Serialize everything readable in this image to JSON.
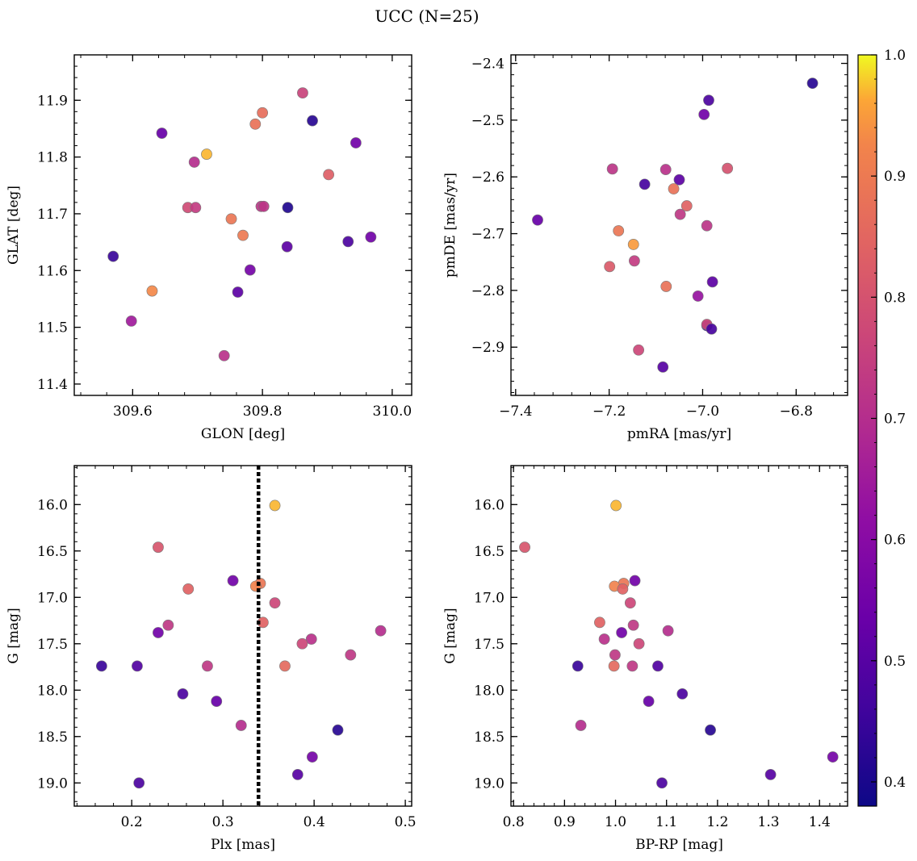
{
  "title": "UCC (N=25)",
  "colorbar": {
    "colormap": "plasma",
    "range": [
      0.38,
      1.0
    ],
    "ticks": [
      0.4,
      0.5,
      0.6,
      0.7,
      0.8,
      0.9,
      1.0
    ],
    "tick_labels": [
      "0.4",
      "0.5",
      "0.6",
      "0.7",
      "0.8",
      "0.9",
      "1.0"
    ]
  },
  "chart_data": [
    {
      "type": "scatter",
      "name": "glon-glat",
      "xlabel": "GLON [deg]",
      "ylabel": "GLAT [deg]",
      "xlim": [
        309.51,
        310.03
      ],
      "ylim": [
        11.38,
        11.98
      ],
      "xticks": [
        309.6,
        309.8,
        310.0
      ],
      "xtick_labels": [
        "309.6",
        "309.8",
        "310.0"
      ],
      "yticks": [
        11.4,
        11.5,
        11.6,
        11.7,
        11.8,
        11.9
      ],
      "ytick_labels": [
        "11.4",
        "11.5",
        "11.6",
        "11.7",
        "11.8",
        "11.9"
      ],
      "points": [
        {
          "x": 309.862,
          "y": 11.913,
          "c": 0.76
        },
        {
          "x": 309.8,
          "y": 11.878,
          "c": 0.87
        },
        {
          "x": 309.789,
          "y": 11.858,
          "c": 0.88
        },
        {
          "x": 309.877,
          "y": 11.864,
          "c": 0.42
        },
        {
          "x": 309.944,
          "y": 11.825,
          "c": 0.55
        },
        {
          "x": 309.645,
          "y": 11.842,
          "c": 0.53
        },
        {
          "x": 309.714,
          "y": 11.805,
          "c": 0.97
        },
        {
          "x": 309.695,
          "y": 11.791,
          "c": 0.7
        },
        {
          "x": 309.902,
          "y": 11.769,
          "c": 0.83
        },
        {
          "x": 309.685,
          "y": 11.711,
          "c": 0.78
        },
        {
          "x": 309.697,
          "y": 11.711,
          "c": 0.74
        },
        {
          "x": 309.798,
          "y": 11.713,
          "c": 0.72
        },
        {
          "x": 309.802,
          "y": 11.713,
          "c": 0.72
        },
        {
          "x": 309.839,
          "y": 11.711,
          "c": 0.41
        },
        {
          "x": 309.752,
          "y": 11.691,
          "c": 0.89
        },
        {
          "x": 309.77,
          "y": 11.662,
          "c": 0.9
        },
        {
          "x": 309.967,
          "y": 11.659,
          "c": 0.55
        },
        {
          "x": 309.932,
          "y": 11.651,
          "c": 0.48
        },
        {
          "x": 309.838,
          "y": 11.642,
          "c": 0.51
        },
        {
          "x": 309.57,
          "y": 11.625,
          "c": 0.45
        },
        {
          "x": 309.781,
          "y": 11.601,
          "c": 0.56
        },
        {
          "x": 309.762,
          "y": 11.562,
          "c": 0.51
        },
        {
          "x": 309.63,
          "y": 11.564,
          "c": 0.93
        },
        {
          "x": 309.598,
          "y": 11.511,
          "c": 0.65
        },
        {
          "x": 309.741,
          "y": 11.45,
          "c": 0.71
        }
      ]
    },
    {
      "type": "scatter",
      "name": "pmra-pmde",
      "xlabel": "pmRA [mas/yr]",
      "ylabel": "pmDE [mas/yr]",
      "xlim": [
        -7.41,
        -6.69
      ],
      "ylim": [
        -2.985,
        -2.385
      ],
      "xticks": [
        -7.4,
        -7.2,
        -7.0,
        -6.8
      ],
      "xtick_labels": [
        "−7.4",
        "−7.2",
        "−7.0",
        "−6.8"
      ],
      "yticks": [
        -2.9,
        -2.8,
        -2.7,
        -2.6,
        -2.5,
        -2.4
      ],
      "ytick_labels": [
        "−2.9",
        "−2.8",
        "−2.7",
        "−2.6",
        "−2.5",
        "−2.4"
      ],
      "points": [
        {
          "x": -6.765,
          "y": -2.435,
          "c": 0.42
        },
        {
          "x": -6.987,
          "y": -2.465,
          "c": 0.48
        },
        {
          "x": -6.997,
          "y": -2.49,
          "c": 0.55
        },
        {
          "x": -6.947,
          "y": -2.585,
          "c": 0.8
        },
        {
          "x": -7.193,
          "y": -2.586,
          "c": 0.72
        },
        {
          "x": -7.079,
          "y": -2.587,
          "c": 0.71
        },
        {
          "x": -7.05,
          "y": -2.605,
          "c": 0.51
        },
        {
          "x": -7.124,
          "y": -2.613,
          "c": 0.47
        },
        {
          "x": -7.062,
          "y": -2.621,
          "c": 0.88
        },
        {
          "x": -7.034,
          "y": -2.651,
          "c": 0.84
        },
        {
          "x": -7.048,
          "y": -2.666,
          "c": 0.73
        },
        {
          "x": -7.353,
          "y": -2.676,
          "c": 0.53
        },
        {
          "x": -6.991,
          "y": -2.686,
          "c": 0.72
        },
        {
          "x": -7.18,
          "y": -2.695,
          "c": 0.89
        },
        {
          "x": -7.148,
          "y": -2.719,
          "c": 0.95
        },
        {
          "x": -7.146,
          "y": -2.748,
          "c": 0.74
        },
        {
          "x": -7.199,
          "y": -2.758,
          "c": 0.82
        },
        {
          "x": -6.979,
          "y": -2.785,
          "c": 0.51
        },
        {
          "x": -7.078,
          "y": -2.793,
          "c": 0.88
        },
        {
          "x": -7.01,
          "y": -2.81,
          "c": 0.63
        },
        {
          "x": -6.991,
          "y": -2.862,
          "c": 0.45
        },
        {
          "x": -6.991,
          "y": -2.86,
          "c": 0.77
        },
        {
          "x": -6.981,
          "y": -2.868,
          "c": 0.47
        },
        {
          "x": -7.137,
          "y": -2.905,
          "c": 0.77
        },
        {
          "x": -7.085,
          "y": -2.935,
          "c": 0.5
        }
      ]
    },
    {
      "type": "scatter",
      "name": "plx-g",
      "xlabel": "Plx [mas]",
      "ylabel": "G [mag]",
      "xlim": [
        0.137,
        0.507
      ],
      "ylim": [
        19.25,
        15.58
      ],
      "y_inverted": true,
      "xticks": [
        0.2,
        0.3,
        0.4,
        0.5
      ],
      "xtick_labels": [
        "0.2",
        "0.3",
        "0.4",
        "0.5"
      ],
      "yticks": [
        16.0,
        16.5,
        17.0,
        17.5,
        18.0,
        18.5,
        19.0
      ],
      "ytick_labels": [
        "16.0",
        "16.5",
        "17.0",
        "17.5",
        "18.0",
        "18.5",
        "19.0"
      ],
      "vline": {
        "x": 0.339,
        "style": "dotted",
        "color": "#000000"
      },
      "points": [
        {
          "x": 0.357,
          "y": 16.01,
          "c": 0.97
        },
        {
          "x": 0.229,
          "y": 16.46,
          "c": 0.81
        },
        {
          "x": 0.311,
          "y": 16.82,
          "c": 0.55
        },
        {
          "x": 0.341,
          "y": 16.85,
          "c": 0.89
        },
        {
          "x": 0.336,
          "y": 16.88,
          "c": 0.92
        },
        {
          "x": 0.262,
          "y": 16.91,
          "c": 0.84
        },
        {
          "x": 0.357,
          "y": 17.06,
          "c": 0.77
        },
        {
          "x": 0.344,
          "y": 17.27,
          "c": 0.84
        },
        {
          "x": 0.24,
          "y": 17.3,
          "c": 0.73
        },
        {
          "x": 0.473,
          "y": 17.36,
          "c": 0.7
        },
        {
          "x": 0.229,
          "y": 17.38,
          "c": 0.55
        },
        {
          "x": 0.397,
          "y": 17.45,
          "c": 0.71
        },
        {
          "x": 0.387,
          "y": 17.5,
          "c": 0.77
        },
        {
          "x": 0.44,
          "y": 17.62,
          "c": 0.73
        },
        {
          "x": 0.167,
          "y": 17.74,
          "c": 0.45
        },
        {
          "x": 0.206,
          "y": 17.74,
          "c": 0.49
        },
        {
          "x": 0.283,
          "y": 17.74,
          "c": 0.73
        },
        {
          "x": 0.368,
          "y": 17.74,
          "c": 0.86
        },
        {
          "x": 0.256,
          "y": 18.04,
          "c": 0.48
        },
        {
          "x": 0.293,
          "y": 18.12,
          "c": 0.53
        },
        {
          "x": 0.32,
          "y": 18.38,
          "c": 0.7
        },
        {
          "x": 0.426,
          "y": 18.43,
          "c": 0.42
        },
        {
          "x": 0.398,
          "y": 18.72,
          "c": 0.56
        },
        {
          "x": 0.382,
          "y": 18.91,
          "c": 0.5
        },
        {
          "x": 0.208,
          "y": 19.0,
          "c": 0.48
        }
      ]
    },
    {
      "type": "scatter",
      "name": "bprp-g",
      "xlabel": "BP-RP [mag]",
      "ylabel": "G [mag]",
      "xlim": [
        0.795,
        1.455
      ],
      "ylim": [
        19.25,
        15.58
      ],
      "y_inverted": true,
      "xticks": [
        0.8,
        0.9,
        1.0,
        1.1,
        1.2,
        1.3,
        1.4
      ],
      "xtick_labels": [
        "0.8",
        "0.9",
        "1.0",
        "1.1",
        "1.2",
        "1.3",
        "1.4"
      ],
      "yticks": [
        16.0,
        16.5,
        17.0,
        17.5,
        18.0,
        18.5,
        19.0
      ],
      "ytick_labels": [
        "16.0",
        "16.5",
        "17.0",
        "17.5",
        "18.0",
        "18.5",
        "19.0"
      ],
      "points": [
        {
          "x": 1.001,
          "y": 16.01,
          "c": 0.97
        },
        {
          "x": 0.822,
          "y": 16.46,
          "c": 0.81
        },
        {
          "x": 1.038,
          "y": 16.82,
          "c": 0.55
        },
        {
          "x": 1.016,
          "y": 16.85,
          "c": 0.89
        },
        {
          "x": 0.998,
          "y": 16.88,
          "c": 0.92
        },
        {
          "x": 1.014,
          "y": 16.91,
          "c": 0.84
        },
        {
          "x": 1.029,
          "y": 17.06,
          "c": 0.77
        },
        {
          "x": 0.969,
          "y": 17.27,
          "c": 0.84
        },
        {
          "x": 1.035,
          "y": 17.3,
          "c": 0.73
        },
        {
          "x": 1.103,
          "y": 17.36,
          "c": 0.7
        },
        {
          "x": 1.012,
          "y": 17.38,
          "c": 0.55
        },
        {
          "x": 0.978,
          "y": 17.45,
          "c": 0.71
        },
        {
          "x": 1.046,
          "y": 17.5,
          "c": 0.77
        },
        {
          "x": 0.999,
          "y": 17.62,
          "c": 0.73
        },
        {
          "x": 0.926,
          "y": 17.74,
          "c": 0.45
        },
        {
          "x": 1.083,
          "y": 17.74,
          "c": 0.49
        },
        {
          "x": 1.033,
          "y": 17.74,
          "c": 0.73
        },
        {
          "x": 0.997,
          "y": 17.74,
          "c": 0.86
        },
        {
          "x": 1.131,
          "y": 18.04,
          "c": 0.48
        },
        {
          "x": 1.065,
          "y": 18.12,
          "c": 0.53
        },
        {
          "x": 0.932,
          "y": 18.38,
          "c": 0.7
        },
        {
          "x": 1.186,
          "y": 18.43,
          "c": 0.42
        },
        {
          "x": 1.426,
          "y": 18.72,
          "c": 0.56
        },
        {
          "x": 1.304,
          "y": 18.91,
          "c": 0.5
        },
        {
          "x": 1.091,
          "y": 19.0,
          "c": 0.48
        }
      ]
    }
  ]
}
